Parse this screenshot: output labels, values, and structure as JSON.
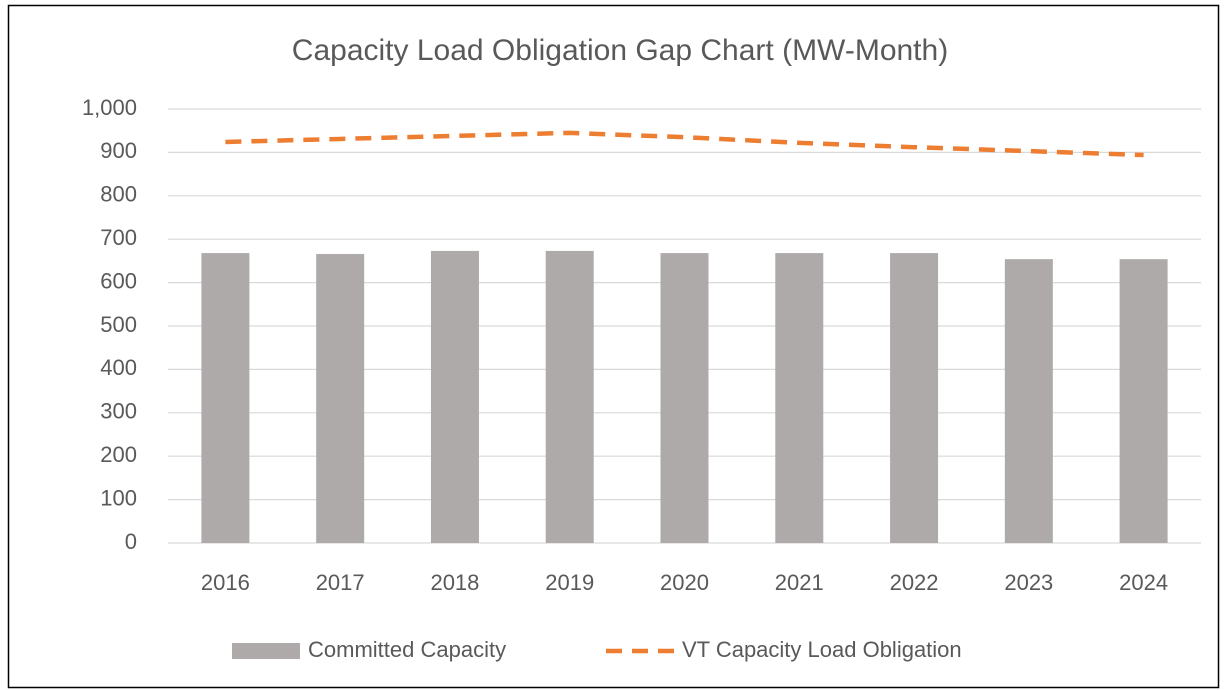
{
  "chart_data": {
    "type": "combo",
    "title": "Capacity Load Obligation Gap Chart (MW-Month)",
    "categories": [
      "2016",
      "2017",
      "2018",
      "2019",
      "2020",
      "2021",
      "2022",
      "2023",
      "2024"
    ],
    "series": [
      {
        "name": "Committed Capacity",
        "type": "bar",
        "color": "#aeaaaa",
        "values": [
          668,
          666,
          673,
          673,
          668,
          668,
          668,
          654,
          654
        ]
      },
      {
        "name": "VT Capacity Load Obligation",
        "type": "line",
        "color": "#ed7d31",
        "dashed": true,
        "values": [
          924,
          931,
          938,
          945,
          935,
          922,
          912,
          903,
          894
        ]
      }
    ],
    "ylim": [
      0,
      1000
    ],
    "yticks": [
      0,
      100,
      200,
      300,
      400,
      500,
      600,
      700,
      800,
      900,
      {
        "value": 1000,
        "label": "1,000"
      }
    ],
    "grid": true,
    "legend": "bottom"
  }
}
